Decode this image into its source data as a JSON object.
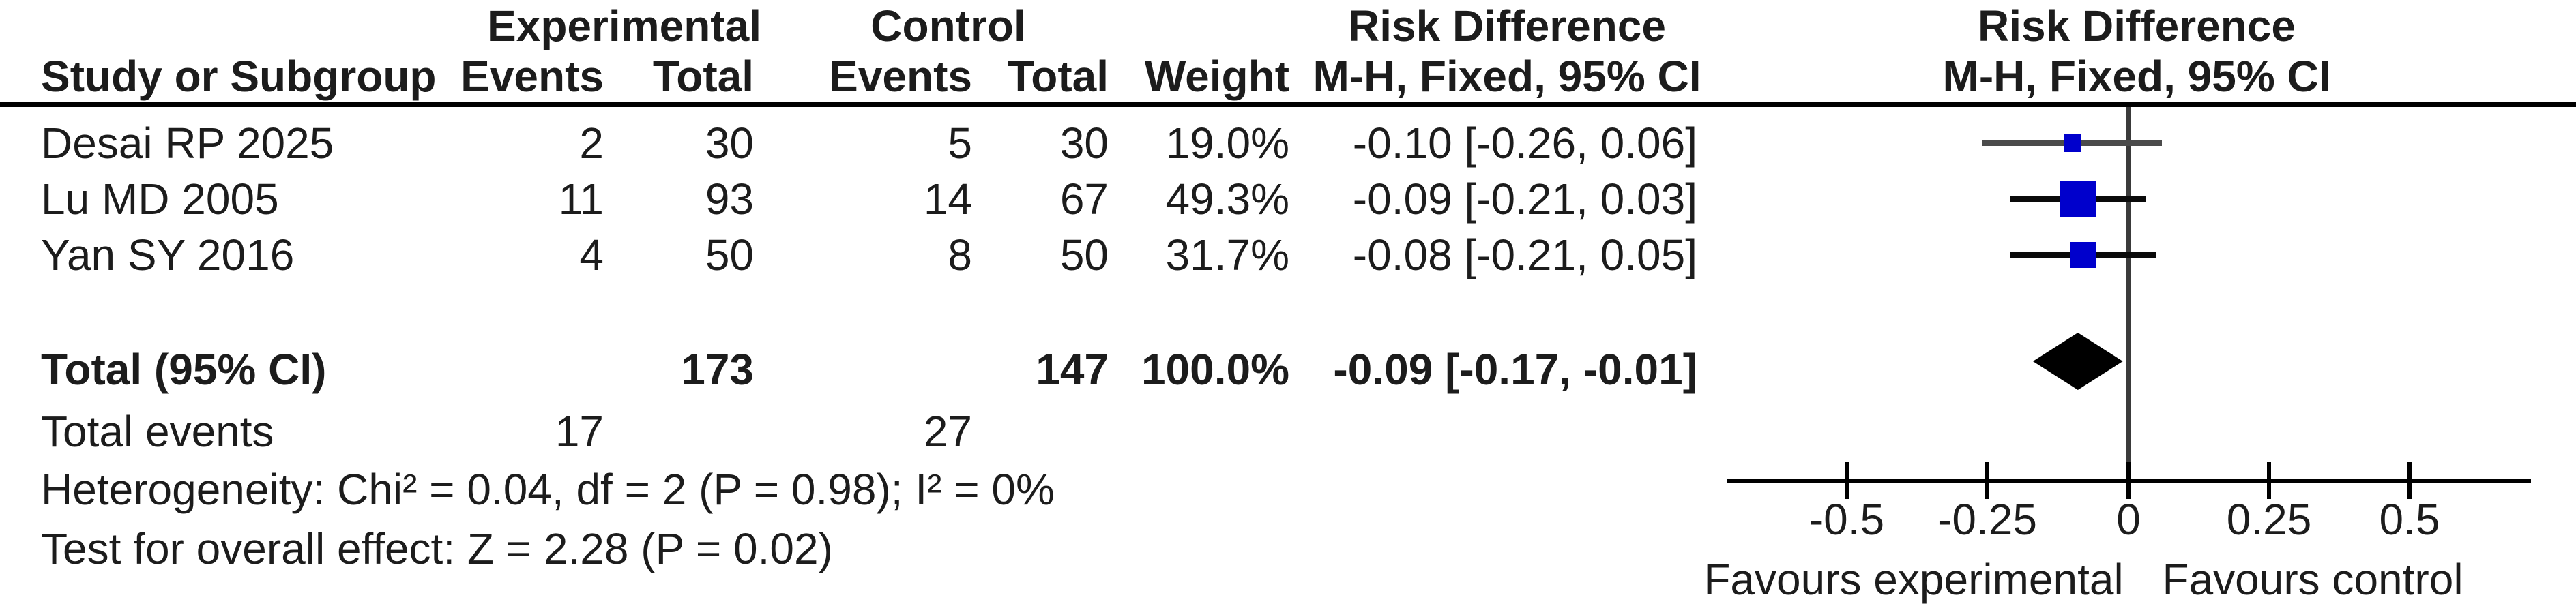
{
  "table": {
    "group_headers": {
      "experimental": "Experimental",
      "control": "Control",
      "risk_difference": "Risk Difference",
      "risk_difference_plot": "Risk Difference"
    },
    "column_headers": {
      "study": "Study or Subgroup",
      "exp_events": "Events",
      "exp_total": "Total",
      "ctrl_events": "Events",
      "ctrl_total": "Total",
      "weight": "Weight",
      "ci": "M-H, Fixed, 95% CI",
      "ci_plot": "M-H, Fixed, 95% CI"
    },
    "rows": [
      {
        "study": "Desai RP 2025",
        "exp_events": "2",
        "exp_total": "30",
        "ctrl_events": "5",
        "ctrl_total": "30",
        "weight": "19.0%",
        "ci": "-0.10 [-0.26, 0.06]"
      },
      {
        "study": "Lu MD 2005",
        "exp_events": "11",
        "exp_total": "93",
        "ctrl_events": "14",
        "ctrl_total": "67",
        "weight": "49.3%",
        "ci": "-0.09 [-0.21, 0.03]"
      },
      {
        "study": "Yan SY 2016",
        "exp_events": "4",
        "exp_total": "50",
        "ctrl_events": "8",
        "ctrl_total": "50",
        "weight": "31.7%",
        "ci": "-0.08 [-0.21, 0.05]"
      }
    ],
    "total": {
      "label": "Total (95% CI)",
      "exp_total": "173",
      "ctrl_total": "147",
      "weight": "100.0%",
      "ci": "-0.09 [-0.17, -0.01]"
    },
    "total_events": {
      "label": "Total events",
      "exp": "17",
      "ctrl": "27"
    },
    "heterogeneity": "Heterogeneity: Chi² = 0.04, df = 2 (P = 0.98); I² = 0%",
    "overall_effect": "Test for overall effect: Z = 2.28 (P = 0.02)"
  },
  "chart_data": {
    "type": "forest",
    "effect_measure": "Risk Difference (M-H, Fixed, 95% CI)",
    "studies": [
      {
        "name": "Desai RP 2025",
        "rd": -0.1,
        "ci_low": -0.26,
        "ci_high": 0.06,
        "weight_pct": 19.0
      },
      {
        "name": "Lu MD 2005",
        "rd": -0.09,
        "ci_low": -0.21,
        "ci_high": 0.03,
        "weight_pct": 49.3
      },
      {
        "name": "Yan SY 2016",
        "rd": -0.08,
        "ci_low": -0.21,
        "ci_high": 0.05,
        "weight_pct": 31.7
      }
    ],
    "total": {
      "rd": -0.09,
      "ci_low": -0.17,
      "ci_high": -0.01
    },
    "axis": {
      "min": -0.72,
      "max": 0.72,
      "ticks": [
        -0.5,
        -0.25,
        0,
        0.25,
        0.5
      ],
      "tick_labels": [
        "-0.5",
        "-0.25",
        "0",
        "0.25",
        "0.5"
      ]
    },
    "favours_left": "Favours experimental",
    "favours_right": "Favours control",
    "marker_color": "#0000CC",
    "ci_line_color": "#000000",
    "diamond_color": "#000000"
  }
}
